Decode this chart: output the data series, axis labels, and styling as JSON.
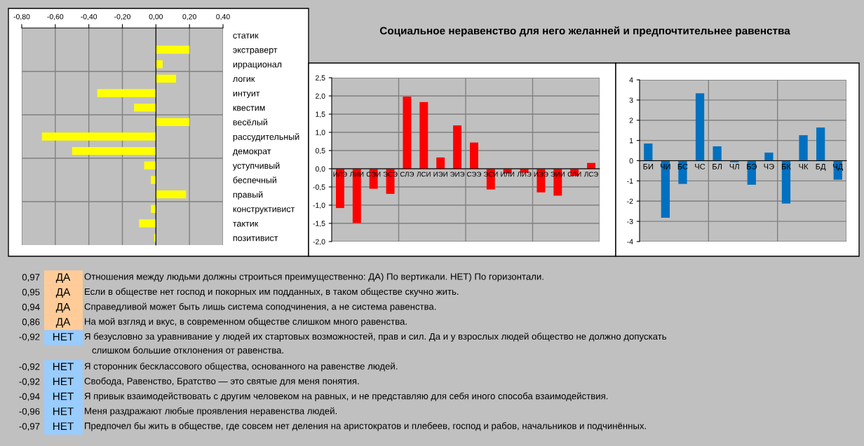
{
  "chart_data": [
    {
      "type": "bar",
      "orientation": "horizontal",
      "grid": true,
      "categories": [
        "статик",
        "экстраверт",
        "иррационал",
        "логик",
        "интуит",
        "квестим",
        "весёлый",
        "рассудительный",
        "демократ",
        "уступчивый",
        "беспечный",
        "правый",
        "конструктивист",
        "тактик",
        "позитивист"
      ],
      "values": [
        0,
        0.2,
        0.04,
        0.12,
        -0.35,
        -0.13,
        0.2,
        -0.68,
        -0.5,
        -0.07,
        -0.03,
        0.18,
        -0.03,
        -0.1,
        -0.01
      ],
      "color": "#ffff00",
      "xlim": [
        -0.8,
        0.4
      ],
      "xticks": [
        {
          "value": -0.8,
          "label": "-0,80"
        },
        {
          "value": -0.6,
          "label": "-0,60"
        },
        {
          "value": -0.4,
          "label": "-0,40"
        },
        {
          "value": -0.2,
          "label": "-0,20"
        },
        {
          "value": 0,
          "label": "0,00"
        },
        {
          "value": 0.2,
          "label": "0,20"
        },
        {
          "value": 0.4,
          "label": "0,40"
        }
      ]
    },
    {
      "type": "bar",
      "grid": true,
      "title": "Социальное неравенство для него желанней и предпочтительнее равенства",
      "categories": [
        "ИЛЭ",
        "ЛИИ",
        "СЭИ",
        "ЭСЭ",
        "СЛЭ",
        "ЛСИ",
        "ИЭИ",
        "ЭИЭ",
        "СЭЭ",
        "ЭСИ",
        "ИЛИ",
        "ЛИЭ",
        "ИЭЭ",
        "ЭИИ",
        "СЛИ",
        "ЛСЭ"
      ],
      "values": [
        -1.08,
        -1.49,
        -0.55,
        -0.69,
        1.98,
        1.83,
        0.31,
        1.19,
        0.72,
        -0.57,
        -0.13,
        -0.11,
        -0.65,
        -0.74,
        -0.2,
        0.16
      ],
      "color": "#ff0000",
      "ylim": [
        -2,
        2.5
      ],
      "yticks": [
        {
          "value": -2,
          "label": "-2,0"
        },
        {
          "value": -1.5,
          "label": "-1,5"
        },
        {
          "value": -1,
          "label": "-1,0"
        },
        {
          "value": -0.5,
          "label": "-0,5"
        },
        {
          "value": 0,
          "label": "0,0"
        },
        {
          "value": 0.5,
          "label": "0,5"
        },
        {
          "value": 1,
          "label": "1,0"
        },
        {
          "value": 1.5,
          "label": "1,5"
        },
        {
          "value": 2,
          "label": "2,0"
        },
        {
          "value": 2.5,
          "label": "2,5"
        }
      ]
    },
    {
      "type": "bar",
      "grid": true,
      "categories": [
        "БИ",
        "ЧИ",
        "БС",
        "ЧС",
        "БЛ",
        "ЧЛ",
        "БЭ",
        "ЧЭ",
        "БК",
        "ЧК",
        "БД",
        "ЧД"
      ],
      "values": [
        0.85,
        -2.82,
        -1.15,
        3.33,
        0.71,
        -0.08,
        -1.19,
        0.4,
        -2.12,
        1.26,
        1.64,
        -0.94
      ],
      "color": "#0070c0",
      "ylim": [
        -4,
        4
      ],
      "yticks": [
        -4,
        -3,
        -2,
        -1,
        0,
        1,
        2,
        3,
        4
      ]
    },
    {
      "type": "other",
      "colors": [
        "#ffcc99",
        "#ffcc99",
        "#ffcc99",
        "#ffcc99",
        "#99ccff",
        "#99ccff",
        "#99ccff",
        "#99ccff",
        "#99ccff",
        "#99ccff"
      ],
      "annotations": [
        "0,97",
        "ДА",
        "Отношения между людьми должны строиться преимущественно: ДА) По вертикали. НЕТ) По горизонтали.",
        "0,95",
        "ДА",
        "Если в обществе нет господ и покорных им подданных, в таком обществе скучно жить.",
        "0,94",
        "ДА",
        "Справедливой может быть лишь система соподчинения, а не система равенства.",
        "0,86",
        "ДА",
        "На мой взгляд и вкус, в современном обществе слишком много равенства.",
        "-0,92",
        "НЕТ",
        "Я безусловно за уравнивание у людей их стартовых возможностей, прав и сил. Да и у взрослых людей общество не должно допускать\n   слишком большие отклонения от равенства.",
        "-0,92",
        "НЕТ",
        "Я сторонник бесклассового общества, основанного на равенстве людей.",
        "-0,92",
        "НЕТ",
        "Свобода, Равенство, Братство — это святые для меня понятия.",
        "-0,94",
        "НЕТ",
        "Я привык взаимодействовать с другим человеком на равных, и не представляю для себя иного способа взаимодействия.",
        "-0,96",
        "НЕТ",
        "Меня раздражают любые проявления неравенства людей.",
        "-0,97",
        "НЕТ",
        "Предпочел бы жить в обществе, где совсем нет деления на аристократов и плебеев, господ и рабов, начальников и подчинённых."
      ]
    }
  ]
}
